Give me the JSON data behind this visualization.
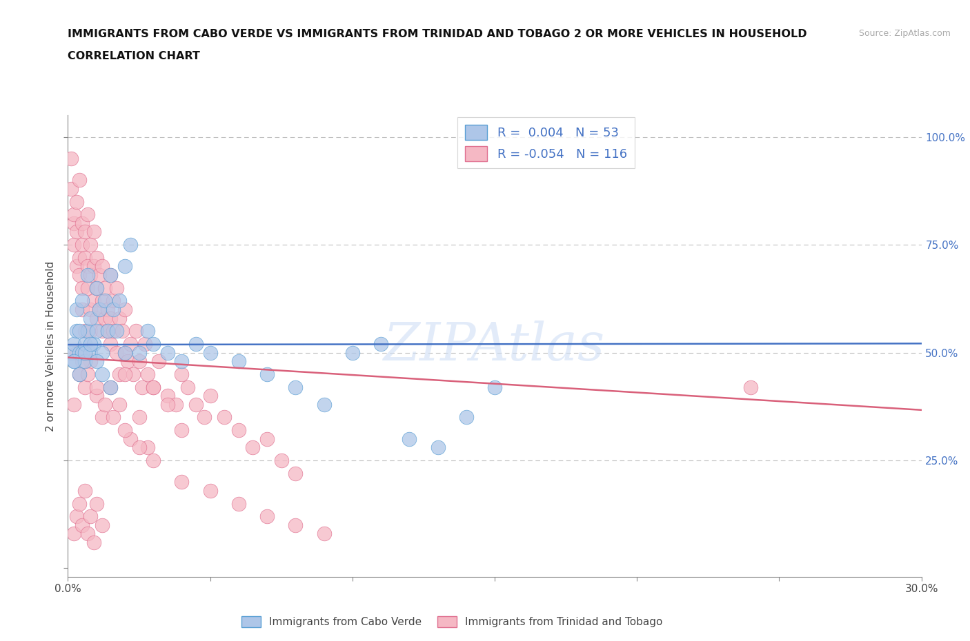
{
  "title_line1": "IMMIGRANTS FROM CABO VERDE VS IMMIGRANTS FROM TRINIDAD AND TOBAGO 2 OR MORE VEHICLES IN HOUSEHOLD",
  "title_line2": "CORRELATION CHART",
  "source": "Source: ZipAtlas.com",
  "ylabel": "2 or more Vehicles in Household",
  "xlim": [
    0.0,
    0.3
  ],
  "ylim": [
    -0.02,
    1.05
  ],
  "xticks": [
    0.0,
    0.05,
    0.1,
    0.15,
    0.2,
    0.25,
    0.3
  ],
  "xticklabels": [
    "0.0%",
    "",
    "",
    "",
    "",
    "",
    "30.0%"
  ],
  "yticks": [
    0.0,
    0.25,
    0.5,
    0.75,
    1.0
  ],
  "yticklabels_right": [
    "",
    "25.0%",
    "50.0%",
    "75.0%",
    "100.0%"
  ],
  "cabo_verde_color": "#aec6e8",
  "cabo_verde_edge": "#5a9fd4",
  "trinidad_color": "#f5b8c4",
  "trinidad_edge": "#e07090",
  "cabo_verde_R": 0.004,
  "cabo_verde_N": 53,
  "trinidad_R": -0.054,
  "trinidad_N": 116,
  "trend_cabo_color": "#4472c4",
  "trend_trinidad_color": "#d9607a",
  "watermark": "ZIPAtlas",
  "legend_label_cabo": "Immigrants from Cabo Verde",
  "legend_label_trinidad": "Immigrants from Trinidad and Tobago",
  "cabo_verde_x": [
    0.001,
    0.002,
    0.002,
    0.003,
    0.003,
    0.004,
    0.004,
    0.005,
    0.005,
    0.006,
    0.006,
    0.007,
    0.007,
    0.008,
    0.008,
    0.009,
    0.01,
    0.01,
    0.011,
    0.012,
    0.013,
    0.014,
    0.015,
    0.016,
    0.017,
    0.018,
    0.02,
    0.022,
    0.025,
    0.028,
    0.03,
    0.035,
    0.04,
    0.045,
    0.05,
    0.06,
    0.07,
    0.08,
    0.09,
    0.1,
    0.11,
    0.12,
    0.13,
    0.14,
    0.15,
    0.002,
    0.004,
    0.006,
    0.008,
    0.01,
    0.012,
    0.015,
    0.02
  ],
  "cabo_verde_y": [
    0.5,
    0.48,
    0.52,
    0.55,
    0.6,
    0.45,
    0.5,
    0.62,
    0.5,
    0.48,
    0.52,
    0.68,
    0.55,
    0.5,
    0.58,
    0.52,
    0.65,
    0.55,
    0.6,
    0.5,
    0.62,
    0.55,
    0.68,
    0.6,
    0.55,
    0.62,
    0.7,
    0.75,
    0.5,
    0.55,
    0.52,
    0.5,
    0.48,
    0.52,
    0.5,
    0.48,
    0.45,
    0.42,
    0.38,
    0.5,
    0.52,
    0.3,
    0.28,
    0.35,
    0.42,
    0.48,
    0.55,
    0.5,
    0.52,
    0.48,
    0.45,
    0.42,
    0.5
  ],
  "trinidad_x": [
    0.001,
    0.001,
    0.002,
    0.002,
    0.002,
    0.003,
    0.003,
    0.003,
    0.004,
    0.004,
    0.004,
    0.005,
    0.005,
    0.005,
    0.005,
    0.006,
    0.006,
    0.006,
    0.007,
    0.007,
    0.007,
    0.008,
    0.008,
    0.008,
    0.008,
    0.009,
    0.009,
    0.009,
    0.01,
    0.01,
    0.01,
    0.011,
    0.011,
    0.012,
    0.012,
    0.012,
    0.013,
    0.013,
    0.014,
    0.014,
    0.015,
    0.015,
    0.015,
    0.016,
    0.016,
    0.017,
    0.017,
    0.018,
    0.018,
    0.019,
    0.02,
    0.02,
    0.021,
    0.022,
    0.023,
    0.024,
    0.025,
    0.026,
    0.027,
    0.028,
    0.03,
    0.032,
    0.035,
    0.038,
    0.04,
    0.042,
    0.045,
    0.048,
    0.05,
    0.055,
    0.06,
    0.065,
    0.07,
    0.075,
    0.08,
    0.002,
    0.004,
    0.006,
    0.008,
    0.01,
    0.012,
    0.015,
    0.018,
    0.02,
    0.022,
    0.025,
    0.028,
    0.03,
    0.035,
    0.04,
    0.003,
    0.005,
    0.007,
    0.01,
    0.013,
    0.016,
    0.02,
    0.025,
    0.03,
    0.04,
    0.05,
    0.06,
    0.07,
    0.08,
    0.09,
    0.24,
    0.002,
    0.003,
    0.004,
    0.005,
    0.006,
    0.007,
    0.008,
    0.009,
    0.01,
    0.012
  ],
  "trinidad_y": [
    0.95,
    0.88,
    0.8,
    0.75,
    0.82,
    0.78,
    0.7,
    0.85,
    0.72,
    0.68,
    0.9,
    0.65,
    0.75,
    0.8,
    0.6,
    0.72,
    0.55,
    0.78,
    0.65,
    0.7,
    0.82,
    0.6,
    0.68,
    0.75,
    0.55,
    0.62,
    0.7,
    0.78,
    0.65,
    0.58,
    0.72,
    0.6,
    0.68,
    0.55,
    0.62,
    0.7,
    0.58,
    0.65,
    0.55,
    0.6,
    0.68,
    0.52,
    0.58,
    0.62,
    0.55,
    0.65,
    0.5,
    0.58,
    0.45,
    0.55,
    0.5,
    0.6,
    0.48,
    0.52,
    0.45,
    0.55,
    0.48,
    0.42,
    0.52,
    0.45,
    0.42,
    0.48,
    0.4,
    0.38,
    0.45,
    0.42,
    0.38,
    0.35,
    0.4,
    0.35,
    0.32,
    0.28,
    0.3,
    0.25,
    0.22,
    0.38,
    0.45,
    0.42,
    0.48,
    0.4,
    0.35,
    0.42,
    0.38,
    0.45,
    0.3,
    0.35,
    0.28,
    0.42,
    0.38,
    0.32,
    0.5,
    0.48,
    0.45,
    0.42,
    0.38,
    0.35,
    0.32,
    0.28,
    0.25,
    0.2,
    0.18,
    0.15,
    0.12,
    0.1,
    0.08,
    0.42,
    0.08,
    0.12,
    0.15,
    0.1,
    0.18,
    0.08,
    0.12,
    0.06,
    0.15,
    0.1
  ]
}
